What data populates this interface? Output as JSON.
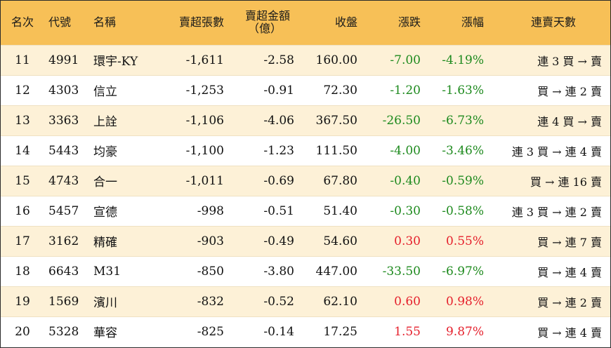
{
  "colors": {
    "header_bg": "#f7c057",
    "row_alt_bg": "#fdf1d7",
    "positive": "#e5202c",
    "negative": "#1e8a1e"
  },
  "headers": {
    "rank": "名次",
    "code": "代號",
    "name": "名稱",
    "net_sell_lots": "賣超張數",
    "net_sell_amount_l1": "賣超金額",
    "net_sell_amount_l2": "（億）",
    "close": "收盤",
    "change": "漲跌",
    "change_pct": "漲幅",
    "streak": "連賣天數"
  },
  "rows": [
    {
      "rank": "11",
      "code": "4991",
      "name": "環宇-KY",
      "lots": "-1,611",
      "amount": "-2.58",
      "close": "160.00",
      "change": "-7.00",
      "pct": "-4.19%",
      "dir": "neg",
      "streak": "連 3 買 → 賣"
    },
    {
      "rank": "12",
      "code": "4303",
      "name": "信立",
      "lots": "-1,253",
      "amount": "-0.91",
      "close": "72.30",
      "change": "-1.20",
      "pct": "-1.63%",
      "dir": "neg",
      "streak": "買 → 連 2 賣"
    },
    {
      "rank": "13",
      "code": "3363",
      "name": "上詮",
      "lots": "-1,106",
      "amount": "-4.06",
      "close": "367.50",
      "change": "-26.50",
      "pct": "-6.73%",
      "dir": "neg",
      "streak": "連 4 買 → 賣"
    },
    {
      "rank": "14",
      "code": "5443",
      "name": "均豪",
      "lots": "-1,100",
      "amount": "-1.23",
      "close": "111.50",
      "change": "-4.00",
      "pct": "-3.46%",
      "dir": "neg",
      "streak": "連 3 買 → 連 4 賣"
    },
    {
      "rank": "15",
      "code": "4743",
      "name": "合一",
      "lots": "-1,011",
      "amount": "-0.69",
      "close": "67.80",
      "change": "-0.40",
      "pct": "-0.59%",
      "dir": "neg",
      "streak": "買 → 連 16 賣"
    },
    {
      "rank": "16",
      "code": "5457",
      "name": "宣德",
      "lots": "-998",
      "amount": "-0.51",
      "close": "51.40",
      "change": "-0.30",
      "pct": "-0.58%",
      "dir": "neg",
      "streak": "連 3 買 → 連 2 賣"
    },
    {
      "rank": "17",
      "code": "3162",
      "name": "精確",
      "lots": "-903",
      "amount": "-0.49",
      "close": "54.60",
      "change": "0.30",
      "pct": "0.55%",
      "dir": "pos",
      "streak": "買 → 連 7 賣"
    },
    {
      "rank": "18",
      "code": "6643",
      "name": "M31",
      "lots": "-850",
      "amount": "-3.80",
      "close": "447.00",
      "change": "-33.50",
      "pct": "-6.97%",
      "dir": "neg",
      "streak": "買 → 連 4 賣"
    },
    {
      "rank": "19",
      "code": "1569",
      "name": "濱川",
      "lots": "-832",
      "amount": "-0.52",
      "close": "62.10",
      "change": "0.60",
      "pct": "0.98%",
      "dir": "pos",
      "streak": "買 → 連 2 賣"
    },
    {
      "rank": "20",
      "code": "5328",
      "name": "華容",
      "lots": "-825",
      "amount": "-0.14",
      "close": "17.25",
      "change": "1.55",
      "pct": "9.87%",
      "dir": "pos",
      "streak": "買 → 連 4 賣"
    }
  ]
}
